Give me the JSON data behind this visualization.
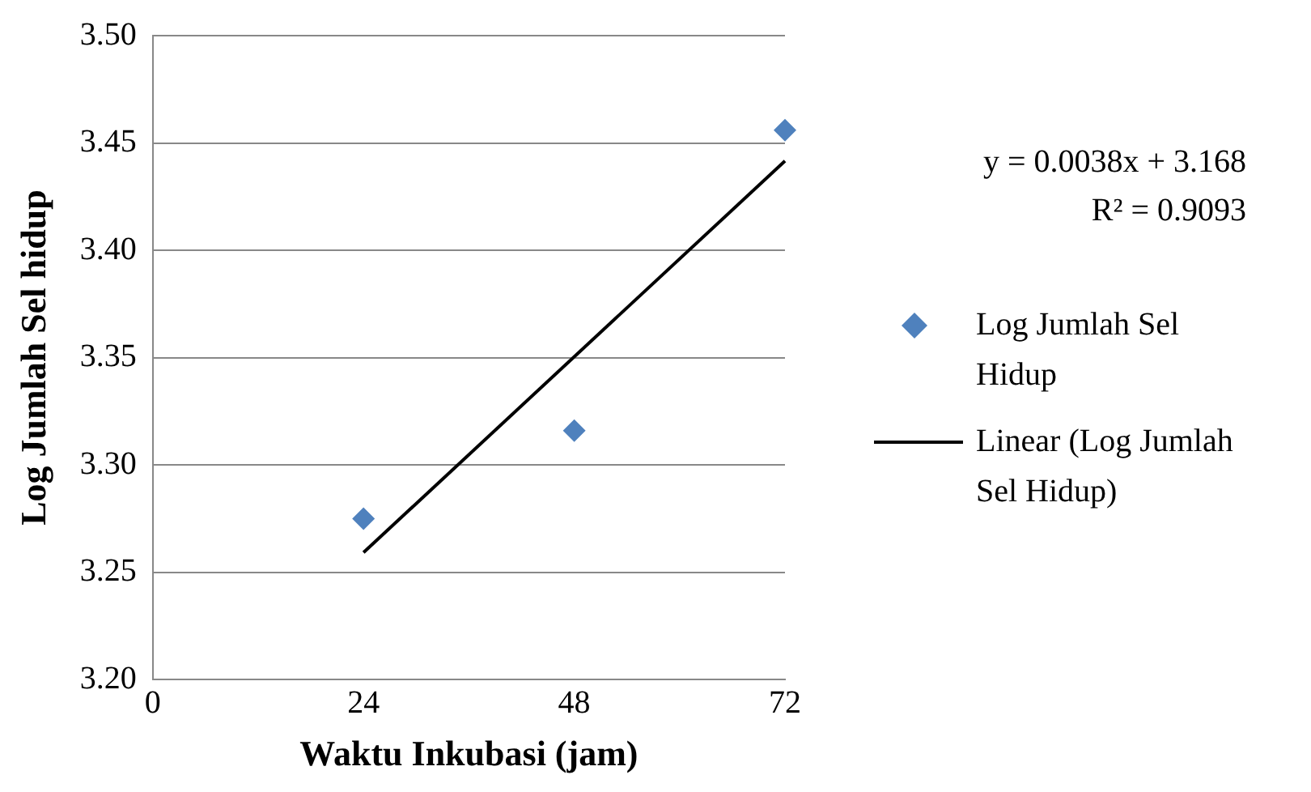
{
  "chart_data": {
    "type": "scatter",
    "xlabel": "Waktu Inkubasi (jam)",
    "ylabel": "Log Jumlah Sel hidup",
    "xlim": [
      0,
      72
    ],
    "xticks": [
      0,
      24,
      48,
      72
    ],
    "ylim": [
      3.2,
      3.5
    ],
    "yticks": [
      {
        "value": 3.2,
        "label": "3.20"
      },
      {
        "value": 3.25,
        "label": "3.25"
      },
      {
        "value": 3.3,
        "label": "3.30"
      },
      {
        "value": 3.35,
        "label": "3.35"
      },
      {
        "value": 3.4,
        "label": "3.40"
      },
      {
        "value": 3.45,
        "label": "3.45"
      },
      {
        "value": 3.5,
        "label": "3.50"
      }
    ],
    "grid": "y",
    "legend": "right",
    "marker": "diamond",
    "series": [
      {
        "name": "Log Jumlah Sel Hidup",
        "type": "scatter",
        "color": "#4f81bd",
        "x": [
          24,
          48,
          72
        ],
        "values": [
          3.275,
          3.316,
          3.456
        ]
      },
      {
        "name": "Linear (Log Jumlah Sel Hidup)",
        "type": "line",
        "color": "#000000",
        "marker": "none",
        "line_style": "solid",
        "x": [
          24,
          72
        ],
        "values": [
          3.2592,
          3.4416
        ]
      }
    ],
    "annotations": [
      "y = 0.0038x + 3.168",
      "R² = 0.9093"
    ]
  }
}
